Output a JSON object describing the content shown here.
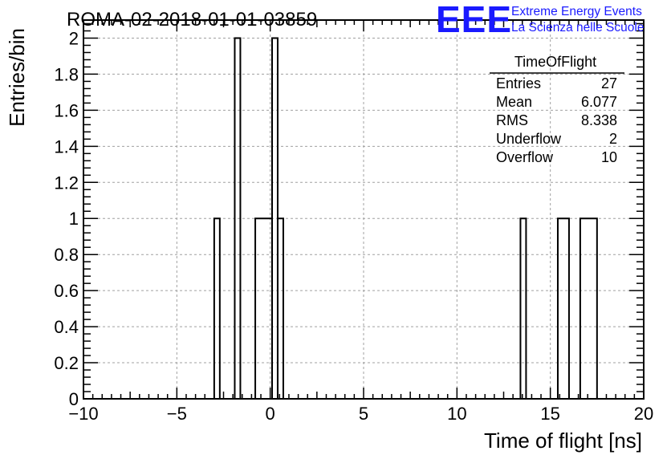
{
  "title": "ROMA-02-2018-01-01-03859",
  "logo": {
    "mark": "EEE",
    "line1": "Extreme Energy Events",
    "line2": "La Scienza nelle Scuole",
    "color": "#1a1aff"
  },
  "stats_box": {
    "name": "TimeOfFlight",
    "rows": [
      {
        "label": "Entries",
        "value": "27"
      },
      {
        "label": "Mean",
        "value": "6.077"
      },
      {
        "label": "RMS",
        "value": "8.338"
      },
      {
        "label": "Underflow",
        "value": "2"
      },
      {
        "label": "Overflow",
        "value": "10"
      }
    ]
  },
  "chart_data": {
    "type": "bar",
    "histogram": true,
    "xlabel": "Time of flight [ns]",
    "ylabel": "Entries/bin",
    "xlim": [
      -10,
      20
    ],
    "ylim": [
      0,
      2.1
    ],
    "grid": true,
    "x_ticks": [
      -10,
      -5,
      0,
      5,
      10,
      15,
      20
    ],
    "x_tick_labels": [
      "−10",
      "−5",
      "0",
      "5",
      "10",
      "15",
      "20"
    ],
    "y_ticks": [
      0,
      0.2,
      0.4,
      0.6,
      0.8,
      1,
      1.2,
      1.4,
      1.6,
      1.8,
      2
    ],
    "y_tick_labels": [
      "0",
      "0.2",
      "0.4",
      "0.6",
      "0.8",
      "1",
      "1.2",
      "1.4",
      "1.6",
      "1.8",
      "2"
    ],
    "bins": [
      {
        "low": -3.0,
        "high": -2.7,
        "count": 1
      },
      {
        "low": -1.9,
        "high": -1.6,
        "count": 2
      },
      {
        "low": -0.8,
        "high": 0.1,
        "count": 1
      },
      {
        "low": 0.1,
        "high": 0.4,
        "count": 2
      },
      {
        "low": 0.4,
        "high": 0.7,
        "count": 1
      },
      {
        "low": 13.4,
        "high": 13.7,
        "count": 1
      },
      {
        "low": 15.4,
        "high": 16.0,
        "count": 1
      },
      {
        "low": 16.6,
        "high": 17.5,
        "count": 1
      }
    ]
  }
}
